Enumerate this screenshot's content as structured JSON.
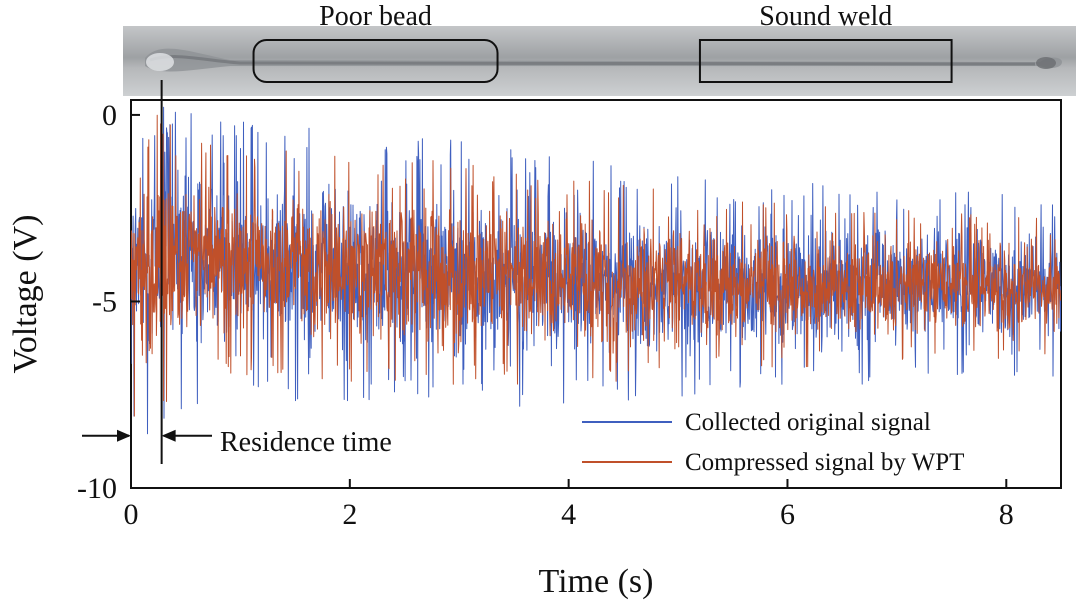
{
  "chart_data": {
    "type": "line",
    "xlabel": "Time (s)",
    "ylabel": "Voltage (V)",
    "xlim": [
      0,
      8.5
    ],
    "ylim": [
      -10,
      0.4
    ],
    "x_ticks": [
      0,
      2,
      4,
      6,
      8
    ],
    "y_ticks": [
      0,
      -5,
      -10
    ],
    "x_tick_labels": [
      "0",
      "2",
      "4",
      "6",
      "8"
    ],
    "y_tick_labels": [
      "0",
      "-5",
      "-10"
    ],
    "grid": false,
    "legend_position": "bottom-right",
    "series": [
      {
        "name": "Collected original signal",
        "color": "#3f5fbf",
        "envelope": {
          "x": [
            0,
            0.25,
            0.5,
            0.75,
            1,
            1.5,
            2,
            2.5,
            3,
            3.5,
            4,
            4.5,
            5,
            5.5,
            6,
            6.5,
            7,
            7.5,
            8,
            8.5
          ],
          "upper": [
            -0.3,
            -0.2,
            -0.4,
            -0.6,
            -0.6,
            -0.8,
            -0.9,
            -1.0,
            -1.1,
            -1.3,
            -1.5,
            -1.7,
            -1.9,
            -2.2,
            -2.1,
            -2.2,
            -2.3,
            -2.3,
            -2.4,
            -2.7
          ],
          "lower": [
            -8.2,
            -8.0,
            -7.5,
            -6.9,
            -7.1,
            -7.2,
            -7.3,
            -7.3,
            -7.4,
            -7.4,
            -7.3,
            -7.3,
            -7.2,
            -7.1,
            -7.0,
            -6.9,
            -6.9,
            -6.8,
            -6.8,
            -6.7
          ]
        }
      },
      {
        "name": "Compressed signal by WPT",
        "color": "#c0502a",
        "envelope": {
          "x": [
            0,
            0.25,
            0.5,
            0.75,
            1,
            1.5,
            2,
            2.5,
            3,
            3.5,
            4,
            4.5,
            5,
            5.5,
            6,
            6.5,
            7,
            7.5,
            8,
            8.5
          ],
          "upper": [
            -0.6,
            -0.5,
            -0.8,
            -1.0,
            -1.1,
            -1.3,
            -1.4,
            -1.5,
            -1.6,
            -1.8,
            -2.0,
            -2.2,
            -2.4,
            -2.6,
            -2.6,
            -2.7,
            -2.8,
            -2.8,
            -2.9,
            -3.1
          ],
          "lower": [
            -7.7,
            -7.5,
            -7.0,
            -6.5,
            -6.6,
            -6.7,
            -6.8,
            -6.8,
            -6.9,
            -6.9,
            -6.8,
            -6.8,
            -6.7,
            -6.6,
            -6.5,
            -6.4,
            -6.4,
            -6.3,
            -6.3,
            -6.2
          ]
        }
      }
    ],
    "annotations": {
      "residence_time": {
        "label": "Residence time",
        "x_start": 0,
        "x_end": 0.28,
        "y": -8.6
      },
      "poor_bead": {
        "label": "Poor bead",
        "x_start": 1.12,
        "x_end": 3.35
      },
      "sound_weld": {
        "label": "Sound weld",
        "x_start": 5.2,
        "x_end": 7.5
      }
    }
  }
}
